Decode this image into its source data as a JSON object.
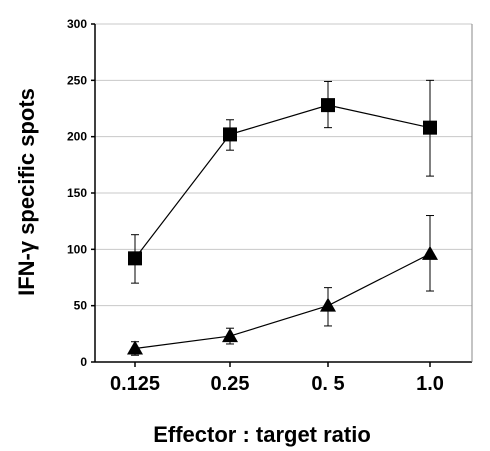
{
  "chart_data": {
    "type": "line",
    "title": "",
    "xlabel": "Effector : target ratio",
    "ylabel": "IFN-γ specific spots",
    "categories": [
      "0.125",
      "0.25",
      "0. 5",
      "1.0"
    ],
    "ylim": [
      0,
      300
    ],
    "yticks": [
      0,
      50,
      100,
      150,
      200,
      250,
      300
    ],
    "grid": "horizontal",
    "legend": "none",
    "series": [
      {
        "marker": "square",
        "color": "#000000",
        "values": [
          92,
          202,
          228,
          208
        ],
        "err_upper": [
          113,
          215,
          249,
          250
        ],
        "err_lower": [
          70,
          188,
          208,
          165
        ]
      },
      {
        "marker": "triangle",
        "color": "#000000",
        "values": [
          12,
          23,
          50,
          96
        ],
        "err_upper": [
          18,
          30,
          66,
          130
        ],
        "err_lower": [
          6,
          16,
          32,
          63
        ]
      }
    ]
  }
}
